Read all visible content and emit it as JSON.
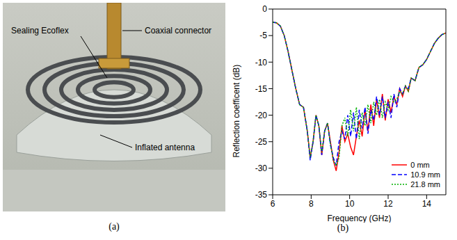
{
  "photo": {
    "label": "(a)",
    "annotations": [
      "Sealing Ecoflex",
      "Coaxial connector",
      "Inflated antenna"
    ]
  },
  "chart_data": {
    "type": "line",
    "label": "(b)",
    "x_label": "Frequency (GHz)",
    "y_label": "Reflection coefficent (dB)",
    "x": [
      6.0,
      6.2,
      6.4,
      6.6,
      6.8,
      7.0,
      7.2,
      7.4,
      7.6,
      7.8,
      7.95,
      8.1,
      8.25,
      8.4,
      8.55,
      8.7,
      8.85,
      9.0,
      9.15,
      9.3,
      9.45,
      9.6,
      9.75,
      9.9,
      10.05,
      10.2,
      10.35,
      10.5,
      10.65,
      10.8,
      10.95,
      11.1,
      11.25,
      11.4,
      11.55,
      11.7,
      11.85,
      12.0,
      12.15,
      12.3,
      12.45,
      12.6,
      12.75,
      12.9,
      13.05,
      13.2,
      13.4,
      13.6,
      13.8,
      14.0,
      14.2,
      14.4,
      14.6,
      14.8,
      15.0
    ],
    "xlim": [
      6,
      15
    ],
    "xticks": [
      6,
      8,
      10,
      12,
      14
    ],
    "ylim": [
      -35,
      0
    ],
    "yticks": [
      -35,
      -30,
      -25,
      -20,
      -15,
      -10,
      -5,
      0
    ],
    "grid": false,
    "legend": "lower right",
    "series": [
      {
        "name": "0 mm",
        "color": "#ff0000",
        "line_style": "solid",
        "values": [
          -2.5,
          -2.6,
          -3.2,
          -5,
          -8,
          -11.5,
          -15,
          -18,
          -18.5,
          -23,
          -28,
          -25,
          -20,
          -22,
          -27.5,
          -23,
          -21.5,
          -25,
          -28.5,
          -30.5,
          -27,
          -22,
          -25,
          -23.5,
          -26,
          -27.5,
          -24,
          -21,
          -24,
          -19,
          -23,
          -18,
          -22,
          -17,
          -20.5,
          -16,
          -21,
          -17,
          -19.5,
          -16.5,
          -18,
          -15,
          -16.5,
          -14.5,
          -15.5,
          -13,
          -13.5,
          -11,
          -10.5,
          -9.5,
          -8,
          -6.5,
          -5.5,
          -4.8,
          -4.5
        ]
      },
      {
        "name": "10.9 mm",
        "color": "#0000ff",
        "line_style": "dashed",
        "values": [
          -2.5,
          -2.6,
          -3.2,
          -5,
          -8,
          -11.5,
          -15,
          -18,
          -18.5,
          -23,
          -28.5,
          -25,
          -20,
          -22,
          -27.5,
          -23,
          -21.5,
          -25.5,
          -28,
          -29.5,
          -25,
          -23,
          -24.5,
          -20,
          -24,
          -19.5,
          -24.5,
          -19,
          -22.5,
          -18.5,
          -23.5,
          -19,
          -21,
          -16.5,
          -20,
          -16.5,
          -20.5,
          -17.5,
          -20.5,
          -16,
          -18.5,
          -15,
          -16,
          -14.5,
          -15,
          -13,
          -13.5,
          -11,
          -10.5,
          -9.5,
          -8,
          -6.5,
          -5.5,
          -4.8,
          -4.5
        ]
      },
      {
        "name": "21.8 mm",
        "color": "#00b000",
        "line_style": "dotted",
        "values": [
          -2.5,
          -2.6,
          -3.2,
          -5,
          -8,
          -11.5,
          -15,
          -18,
          -18.5,
          -23,
          -28,
          -25,
          -20,
          -22,
          -27,
          -23,
          -21.5,
          -25.5,
          -28.5,
          -29.5,
          -28,
          -22,
          -20.5,
          -24,
          -19,
          -23,
          -18.5,
          -24.5,
          -19.5,
          -22,
          -18,
          -21.5,
          -17.5,
          -20,
          -17,
          -20.5,
          -17.5,
          -19,
          -16.5,
          -17.5,
          -17,
          -15.5,
          -16,
          -14.5,
          -15.5,
          -13,
          -13.5,
          -11,
          -10.5,
          -9.5,
          -8,
          -6.5,
          -5.5,
          -4.8,
          -4.5
        ]
      }
    ]
  }
}
